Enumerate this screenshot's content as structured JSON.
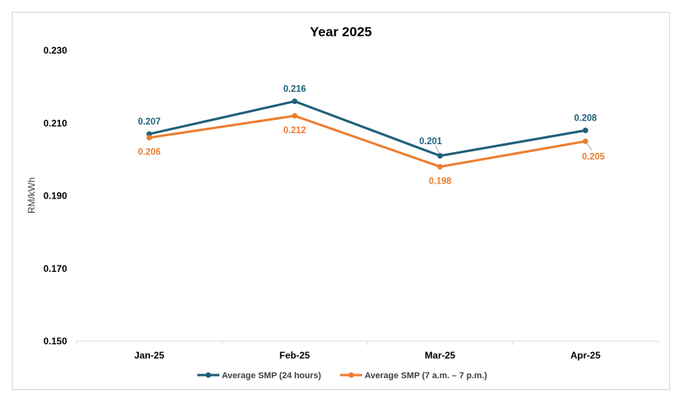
{
  "chart_data": {
    "type": "line",
    "title": "Year 2025",
    "ylabel": "RM/kWh",
    "xlabel": "",
    "categories": [
      "Jan-25",
      "Feb-25",
      "Mar-25",
      "Apr-25"
    ],
    "ylim": [
      0.15,
      0.23
    ],
    "yticks": [
      "0.150",
      "0.170",
      "0.190",
      "0.210",
      "0.230"
    ],
    "grid": false,
    "legend_position": "bottom",
    "series": [
      {
        "name": "Average SMP (24 hours)",
        "values": [
          0.207,
          0.216,
          0.201,
          0.208
        ],
        "labels": [
          "0.207",
          "0.216",
          "0.201",
          "0.208"
        ],
        "color": "#1f5f7a"
      },
      {
        "name": "Average SMP (7 a.m. – 7 p.m.)",
        "values": [
          0.206,
          0.212,
          0.198,
          0.205
        ],
        "labels": [
          "0.206",
          "0.212",
          "0.198",
          "0.205"
        ],
        "color": "#ed7d31"
      }
    ]
  }
}
